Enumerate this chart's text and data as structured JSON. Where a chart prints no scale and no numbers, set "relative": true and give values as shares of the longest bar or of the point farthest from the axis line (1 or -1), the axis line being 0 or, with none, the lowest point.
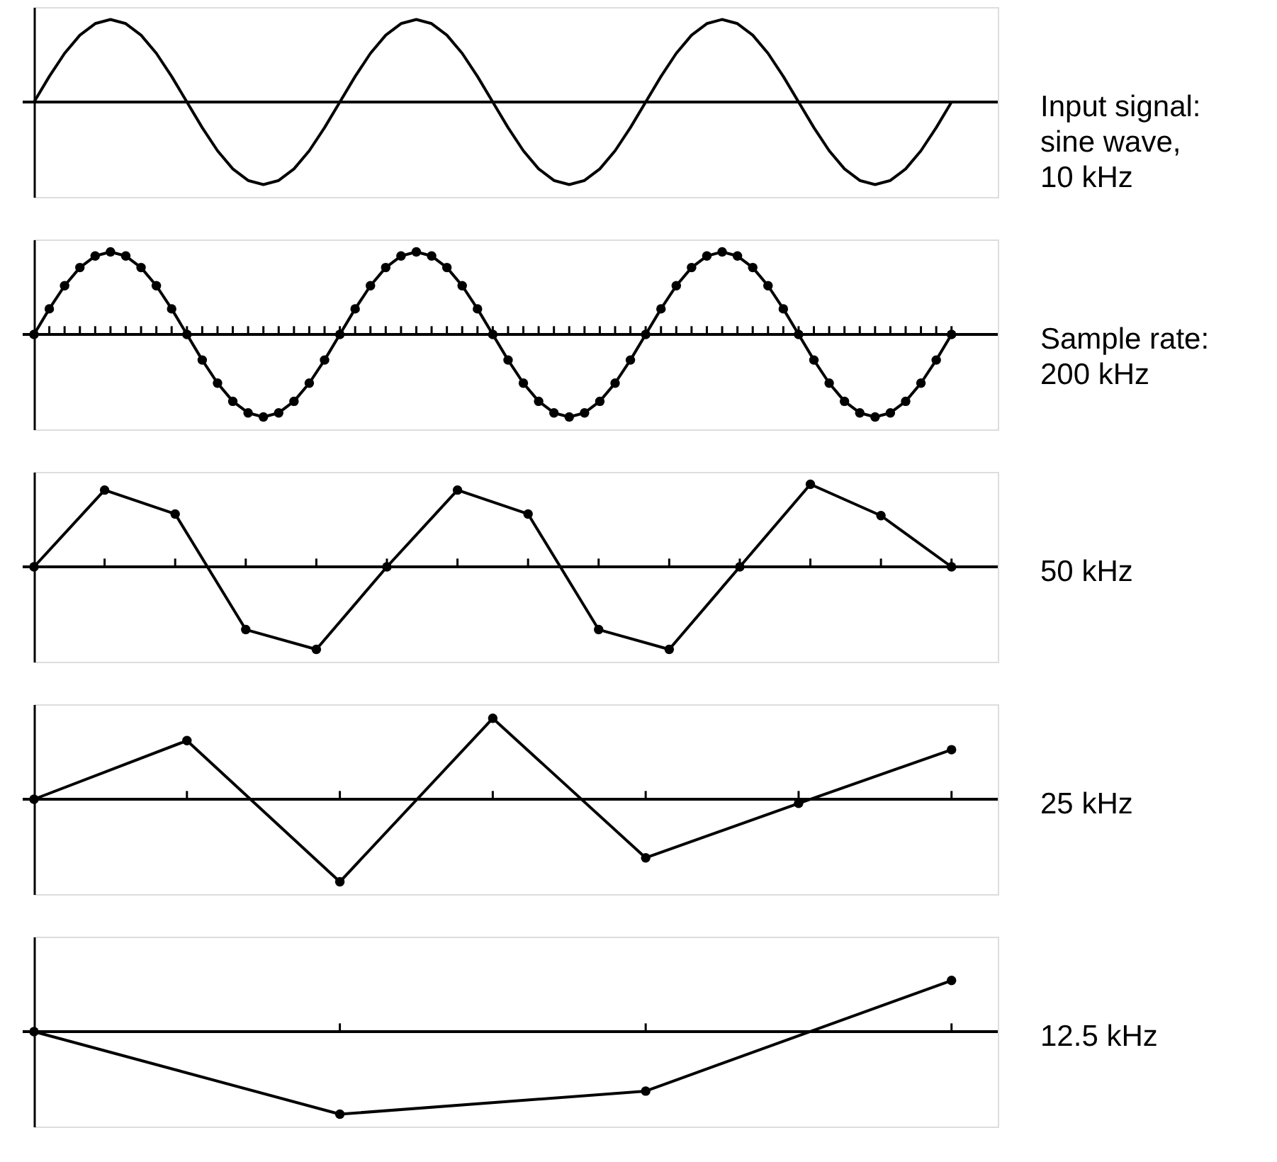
{
  "chart_data": [
    {
      "type": "line",
      "relative": true,
      "tick_labels": false,
      "marker": "none",
      "annotations": [
        "Input signal:\nsine wave,\n10 kHz"
      ],
      "categories": [
        null,
        null,
        null,
        null,
        null,
        null,
        null,
        null,
        null,
        null,
        null,
        null,
        null,
        null,
        null,
        null,
        null,
        null,
        null,
        null,
        null,
        null,
        null,
        null,
        null,
        null,
        null,
        null,
        null,
        null,
        null,
        null,
        null,
        null,
        null,
        null,
        null,
        null,
        null,
        null,
        null,
        null,
        null,
        null,
        null,
        null,
        null,
        null,
        null,
        null,
        null,
        null,
        null,
        null,
        null,
        null,
        null,
        null,
        null,
        null,
        null
      ],
      "series": [
        {
          "color": "#000000",
          "values": [
            0,
            0.31,
            0.59,
            0.81,
            0.95,
            1,
            0.95,
            0.81,
            0.59,
            0.31,
            0,
            -0.31,
            -0.59,
            -0.81,
            -0.95,
            -1,
            -0.95,
            -0.81,
            -0.59,
            -0.31,
            0,
            0.31,
            0.59,
            0.81,
            0.95,
            1,
            0.95,
            0.81,
            0.59,
            0.31,
            0,
            -0.31,
            -0.59,
            -0.81,
            -0.95,
            -1,
            -0.95,
            -0.81,
            -0.59,
            -0.31,
            0,
            0.31,
            0.59,
            0.81,
            0.95,
            1,
            0.95,
            0.81,
            0.59,
            0.31,
            0,
            -0.31,
            -0.59,
            -0.81,
            -0.95,
            -1,
            -0.95,
            -0.81,
            -0.59,
            -0.31,
            0
          ]
        }
      ]
    },
    {
      "type": "line",
      "relative": true,
      "tick_labels": false,
      "marker": "circle",
      "annotations": [
        "Sample rate:\n200 kHz"
      ],
      "categories": [
        null,
        null,
        null,
        null,
        null,
        null,
        null,
        null,
        null,
        null,
        null,
        null,
        null,
        null,
        null,
        null,
        null,
        null,
        null,
        null,
        null,
        null,
        null,
        null,
        null,
        null,
        null,
        null,
        null,
        null,
        null,
        null,
        null,
        null,
        null,
        null,
        null,
        null,
        null,
        null,
        null,
        null,
        null,
        null,
        null,
        null,
        null,
        null,
        null,
        null,
        null,
        null,
        null,
        null,
        null,
        null,
        null,
        null,
        null,
        null,
        null
      ],
      "series": [
        {
          "color": "#000000",
          "values": [
            0,
            0.31,
            0.59,
            0.81,
            0.95,
            1,
            0.95,
            0.81,
            0.59,
            0.31,
            0,
            -0.31,
            -0.59,
            -0.81,
            -0.95,
            -1,
            -0.95,
            -0.81,
            -0.59,
            -0.31,
            0,
            0.31,
            0.59,
            0.81,
            0.95,
            1,
            0.95,
            0.81,
            0.59,
            0.31,
            0,
            -0.31,
            -0.59,
            -0.81,
            -0.95,
            -1,
            -0.95,
            -0.81,
            -0.59,
            -0.31,
            0,
            0.31,
            0.59,
            0.81,
            0.95,
            1,
            0.95,
            0.81,
            0.59,
            0.31,
            0,
            -0.31,
            -0.59,
            -0.81,
            -0.95,
            -1,
            -0.95,
            -0.81,
            -0.59,
            -0.31,
            0
          ]
        }
      ]
    },
    {
      "type": "line",
      "relative": true,
      "tick_labels": false,
      "marker": "circle",
      "annotations": [
        "50 kHz"
      ],
      "categories": [
        null,
        null,
        null,
        null,
        null,
        null,
        null,
        null,
        null,
        null,
        null,
        null,
        null,
        null
      ],
      "series": [
        {
          "color": "#000000",
          "values": [
            0,
            0.93,
            0.64,
            -0.76,
            -1,
            0,
            0.93,
            0.64,
            -0.76,
            -1,
            0,
            1,
            0.62,
            0
          ]
        }
      ]
    },
    {
      "type": "line",
      "relative": true,
      "tick_labels": false,
      "marker": "circle",
      "annotations": [
        "25 kHz"
      ],
      "categories": [
        null,
        null,
        null,
        null,
        null,
        null,
        null
      ],
      "series": [
        {
          "color": "#000000",
          "values": [
            0,
            0.71,
            -1,
            0.98,
            -0.71,
            -0.05,
            0.6
          ]
        }
      ]
    },
    {
      "type": "line",
      "relative": true,
      "tick_labels": false,
      "marker": "circle",
      "annotations": [
        "12.5 kHz"
      ],
      "categories": [
        null,
        null,
        null,
        null
      ],
      "series": [
        {
          "color": "#000000",
          "values": [
            0,
            -1,
            -0.72,
            0.62
          ]
        }
      ]
    }
  ]
}
